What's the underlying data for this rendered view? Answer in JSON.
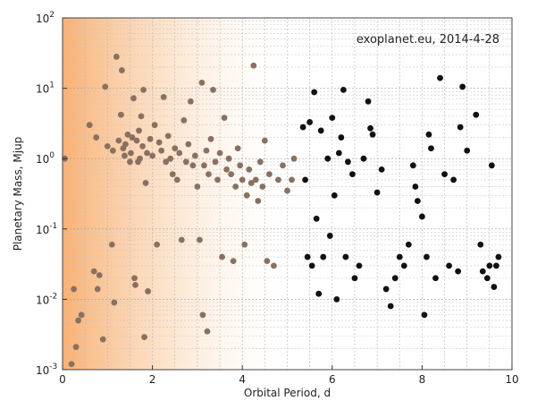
{
  "chart_data": {
    "type": "scatter",
    "title": "",
    "annotation": "exoplanet.eu, 2014-4-28",
    "xlabel": "Orbital Period, d",
    "ylabel": "Planetary Mass, Mjup",
    "xlim": [
      0,
      10
    ],
    "ylim": [
      0.001,
      100
    ],
    "y_scale": "log",
    "grid": true,
    "x_ticks": [
      "0",
      "2",
      "4",
      "6",
      "8",
      "10"
    ],
    "y_ticks": [
      {
        "base": "10",
        "exp": "2",
        "value": 100
      },
      {
        "base": "10",
        "exp": "1",
        "value": 10
      },
      {
        "base": "10",
        "exp": "0",
        "value": 1
      },
      {
        "base": "10",
        "exp": "-1",
        "value": 0.1
      },
      {
        "base": "10",
        "exp": "-2",
        "value": 0.01
      },
      {
        "base": "10",
        "exp": "-3",
        "value": 0.001
      }
    ],
    "background_gradient": {
      "color": "#f7a35c",
      "from_x": 0,
      "to_x": 5.2
    },
    "colors": {
      "near": "#8a7060",
      "far": "#111111"
    },
    "points": [
      [
        0.05,
        1.0
      ],
      [
        0.2,
        0.0012
      ],
      [
        0.25,
        0.014
      ],
      [
        0.3,
        0.0021
      ],
      [
        0.35,
        0.005
      ],
      [
        0.42,
        0.006
      ],
      [
        0.6,
        3.0
      ],
      [
        0.7,
        0.025
      ],
      [
        0.75,
        2.0
      ],
      [
        0.78,
        0.014
      ],
      [
        0.82,
        0.022
      ],
      [
        0.9,
        0.0027
      ],
      [
        0.95,
        10.5
      ],
      [
        1.0,
        1.5
      ],
      [
        1.1,
        0.06
      ],
      [
        1.12,
        1.3
      ],
      [
        1.15,
        0.009
      ],
      [
        1.2,
        28
      ],
      [
        1.25,
        1.8
      ],
      [
        1.3,
        4.2
      ],
      [
        1.32,
        18
      ],
      [
        1.35,
        1.4
      ],
      [
        1.38,
        1.1
      ],
      [
        1.4,
        1.6
      ],
      [
        1.45,
        2.2
      ],
      [
        1.5,
        0.9
      ],
      [
        1.52,
        1.2
      ],
      [
        1.55,
        2.0
      ],
      [
        1.58,
        7.2
      ],
      [
        1.6,
        0.02
      ],
      [
        1.62,
        0.016
      ],
      [
        1.65,
        1.8
      ],
      [
        1.68,
        0.9
      ],
      [
        1.7,
        2.5
      ],
      [
        1.72,
        1.0
      ],
      [
        1.75,
        4.0
      ],
      [
        1.78,
        1.5
      ],
      [
        1.8,
        9.5
      ],
      [
        1.82,
        0.0029
      ],
      [
        1.85,
        0.45
      ],
      [
        1.88,
        1.2
      ],
      [
        1.9,
        0.013
      ],
      [
        1.95,
        1.9
      ],
      [
        2.0,
        1.1
      ],
      [
        2.05,
        3.0
      ],
      [
        2.1,
        0.06
      ],
      [
        2.15,
        1.7
      ],
      [
        2.2,
        1.3
      ],
      [
        2.25,
        7.5
      ],
      [
        2.3,
        0.9
      ],
      [
        2.35,
        2.1
      ],
      [
        2.4,
        1.0
      ],
      [
        2.45,
        0.6
      ],
      [
        2.5,
        1.4
      ],
      [
        2.55,
        0.5
      ],
      [
        2.6,
        1.2
      ],
      [
        2.65,
        0.07
      ],
      [
        2.7,
        3.5
      ],
      [
        2.75,
        0.9
      ],
      [
        2.8,
        1.6
      ],
      [
        2.85,
        6.5
      ],
      [
        2.9,
        0.8
      ],
      [
        2.95,
        1.1
      ],
      [
        3.0,
        0.4
      ],
      [
        3.05,
        0.07
      ],
      [
        3.1,
        12
      ],
      [
        3.12,
        0.006
      ],
      [
        3.15,
        0.8
      ],
      [
        3.2,
        1.3
      ],
      [
        3.22,
        0.0035
      ],
      [
        3.25,
        0.6
      ],
      [
        3.3,
        1.9
      ],
      [
        3.35,
        9.5
      ],
      [
        3.4,
        0.9
      ],
      [
        3.45,
        0.5
      ],
      [
        3.5,
        1.2
      ],
      [
        3.55,
        0.04
      ],
      [
        3.6,
        3.8
      ],
      [
        3.65,
        0.7
      ],
      [
        3.7,
        1.0
      ],
      [
        3.75,
        0.6
      ],
      [
        3.8,
        0.035
      ],
      [
        3.85,
        0.4
      ],
      [
        3.9,
        1.4
      ],
      [
        3.95,
        0.8
      ],
      [
        4.0,
        0.5
      ],
      [
        4.05,
        0.06
      ],
      [
        4.1,
        0.3
      ],
      [
        4.15,
        0.7
      ],
      [
        4.2,
        0.45
      ],
      [
        4.25,
        21
      ],
      [
        4.3,
        0.5
      ],
      [
        4.35,
        0.25
      ],
      [
        4.4,
        0.9
      ],
      [
        4.45,
        0.4
      ],
      [
        4.5,
        1.8
      ],
      [
        4.55,
        0.035
      ],
      [
        4.6,
        0.6
      ],
      [
        4.7,
        0.03
      ],
      [
        4.8,
        0.5
      ],
      [
        4.9,
        0.8
      ],
      [
        5.0,
        0.35
      ],
      [
        5.1,
        0.5
      ],
      [
        5.15,
        1.0
      ],
      [
        5.35,
        2.8
      ],
      [
        5.4,
        0.5
      ],
      [
        5.45,
        0.04
      ],
      [
        5.5,
        3.3
      ],
      [
        5.55,
        0.03
      ],
      [
        5.6,
        8.8
      ],
      [
        5.65,
        0.14
      ],
      [
        5.7,
        0.012
      ],
      [
        5.75,
        2.5
      ],
      [
        5.8,
        0.04
      ],
      [
        5.9,
        1.0
      ],
      [
        5.95,
        0.08
      ],
      [
        6.0,
        3.8
      ],
      [
        6.05,
        0.3
      ],
      [
        6.1,
        0.01
      ],
      [
        6.15,
        1.2
      ],
      [
        6.2,
        2.0
      ],
      [
        6.25,
        9.5
      ],
      [
        6.3,
        0.04
      ],
      [
        6.35,
        0.9
      ],
      [
        6.45,
        0.6
      ],
      [
        6.5,
        0.02
      ],
      [
        6.6,
        0.03
      ],
      [
        6.7,
        1.0
      ],
      [
        6.8,
        6.5
      ],
      [
        6.85,
        2.7
      ],
      [
        6.9,
        2.2
      ],
      [
        7.0,
        0.33
      ],
      [
        7.1,
        0.7
      ],
      [
        7.2,
        0.014
      ],
      [
        7.3,
        0.008
      ],
      [
        7.4,
        0.02
      ],
      [
        7.5,
        0.04
      ],
      [
        7.6,
        0.03
      ],
      [
        7.7,
        0.06
      ],
      [
        7.8,
        0.8
      ],
      [
        7.85,
        0.4
      ],
      [
        7.9,
        0.25
      ],
      [
        8.0,
        0.15
      ],
      [
        8.05,
        0.006
      ],
      [
        8.1,
        0.04
      ],
      [
        8.15,
        2.2
      ],
      [
        8.2,
        1.4
      ],
      [
        8.3,
        0.02
      ],
      [
        8.4,
        14
      ],
      [
        8.5,
        0.6
      ],
      [
        8.6,
        0.03
      ],
      [
        8.7,
        0.5
      ],
      [
        8.8,
        0.025
      ],
      [
        8.85,
        2.8
      ],
      [
        8.9,
        10.5
      ],
      [
        9.0,
        1.3
      ],
      [
        9.2,
        4.2
      ],
      [
        9.3,
        0.06
      ],
      [
        9.35,
        0.025
      ],
      [
        9.45,
        0.02
      ],
      [
        9.5,
        0.03
      ],
      [
        9.55,
        0.8
      ],
      [
        9.6,
        0.015
      ],
      [
        9.65,
        0.03
      ],
      [
        9.7,
        0.04
      ]
    ]
  }
}
